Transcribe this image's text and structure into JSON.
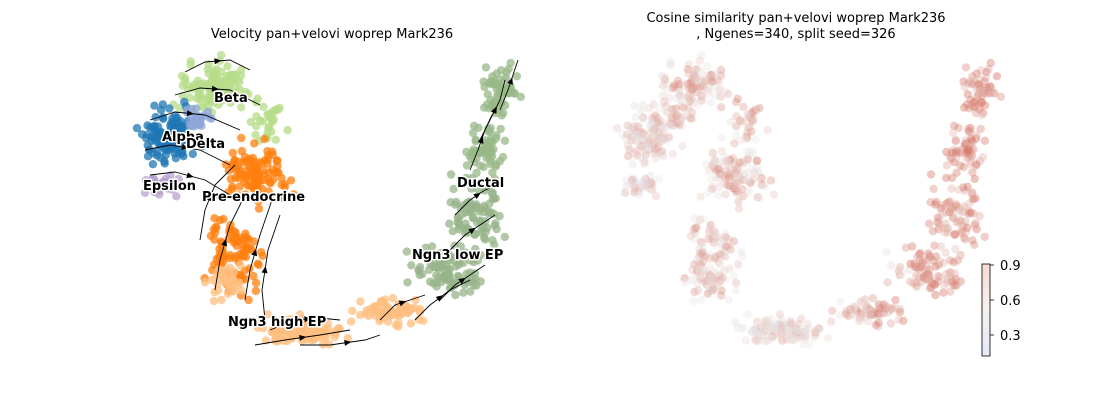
{
  "left_panel": {
    "title": "Velocity pan+velovi woprep Mark236"
  },
  "right_panel": {
    "title_line1": "Cosine similarity pan+velovi woprep Mark236",
    "title_line2": ", Ngenes=340, split seed=326"
  },
  "chart_data": [
    {
      "type": "scatter",
      "title": "Velocity pan+velovi woprep Mark236",
      "embedding": "UMAP with RNA velocity streamlines",
      "axes_visible": false,
      "clusters": [
        {
          "name": "Beta",
          "color": "#b5dc88"
        },
        {
          "name": "Alpha",
          "color": "#1f77b4"
        },
        {
          "name": "Delta",
          "color": "#8fa7d8"
        },
        {
          "name": "Epsilon",
          "color": "#b8a2cf"
        },
        {
          "name": "Pre-endocrine",
          "color": "#ff7f0e"
        },
        {
          "name": "Ductal",
          "color": "#98b888"
        },
        {
          "name": "Ngn3 low EP",
          "color": "#97b489"
        },
        {
          "name": "Ngn3 high EP",
          "color": "#ffbf80"
        }
      ]
    },
    {
      "type": "scatter",
      "title": "Cosine similarity pan+velovi woprep Mark236\n, Ngenes=340, split seed=326",
      "axes_visible": false,
      "colormap": "coolwarm",
      "colorbar": {
        "ticks": [
          0.3,
          0.6,
          0.9
        ],
        "range": [
          0.1,
          0.92
        ]
      },
      "region_values": [
        {
          "region": "Alpha/Epsilon",
          "cosine_similarity": 0.45
        },
        {
          "region": "Beta/Delta",
          "cosine_similarity": 0.6
        },
        {
          "region": "Pre-endocrine",
          "cosine_similarity": 0.55
        },
        {
          "region": "Ngn3 high EP",
          "cosine_similarity": 0.5
        },
        {
          "region": "Ngn3 low EP",
          "cosine_similarity": 0.8
        },
        {
          "region": "Ductal",
          "cosine_similarity": 0.7
        }
      ]
    }
  ],
  "labels": [
    {
      "text": "Beta"
    },
    {
      "text": "Alpha"
    },
    {
      "text": "Delta"
    },
    {
      "text": "Epsilon"
    },
    {
      "text": "Pre-endocrine"
    },
    {
      "text": "Ductal"
    },
    {
      "text": "Ngn3 low EP"
    },
    {
      "text": "Ngn3 high EP"
    }
  ],
  "colorbar_ticks": [
    "0.9",
    "0.6",
    "0.3"
  ]
}
